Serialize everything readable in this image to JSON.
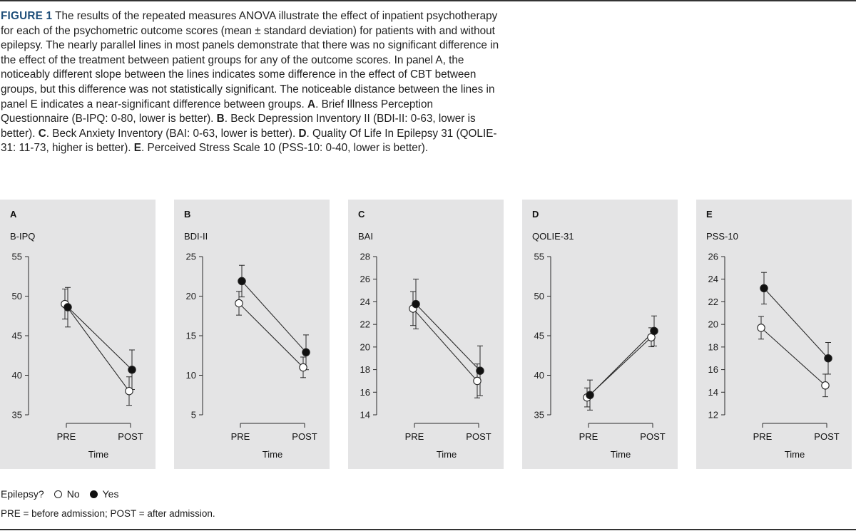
{
  "caption": {
    "figure_label": "FIGURE 1",
    "intro": "The results of the repeated measures ANOVA illustrate the effect of inpatient psychotherapy for each of the psychometric outcome scores (mean ± standard deviation) for patients with and without epilepsy. The nearly parallel lines in most panels demonstrate that there was no significant difference in the effect of the treatment between patient groups for any of the outcome scores. In panel A, the noticeably different slope between the lines indicates some difference in the effect of CBT between groups, but this difference was not statistically significant. The noticeable distance between the lines in panel E indicates a near-significant difference between groups.",
    "items": [
      {
        "letter": "A",
        "text": "Brief Illness Perception Questionnaire (B-IPQ: 0-80, lower is better)."
      },
      {
        "letter": "B",
        "text": "Beck Depression Inventory II (BDI-II: 0-63, lower is better)."
      },
      {
        "letter": "C",
        "text": "Beck Anxiety Inventory (BAI: 0-63, lower is better)."
      },
      {
        "letter": "D",
        "text": "Quality Of Life In Epilepsy 31 (QOLIE-31: 11-73, higher is better)."
      },
      {
        "letter": "E",
        "text": "Perceived Stress Scale 10 (PSS-10: 0-40, lower is better)."
      }
    ]
  },
  "legend": {
    "label": "Epilepsy?",
    "no": "No",
    "yes": "Yes",
    "colors": {
      "no_fill": "#ffffff",
      "yes_fill": "#111111",
      "stroke": "#222222"
    }
  },
  "footnote": "PRE = before admission; POST = after admission.",
  "chart_data": [
    {
      "type": "line",
      "panel": "A",
      "ylabel": "B-IPQ",
      "xlabel": "Time",
      "categories": [
        "PRE",
        "POST"
      ],
      "ylim": [
        35,
        55
      ],
      "yticks": [
        35,
        40,
        45,
        50,
        55
      ],
      "series": [
        {
          "name": "No",
          "values": [
            49.0,
            38.0
          ],
          "sd": [
            1.9,
            1.8
          ]
        },
        {
          "name": "Yes",
          "values": [
            48.6,
            40.7
          ],
          "sd": [
            2.5,
            2.5
          ]
        }
      ]
    },
    {
      "type": "line",
      "panel": "B",
      "ylabel": "BDI-II",
      "xlabel": "Time",
      "categories": [
        "PRE",
        "POST"
      ],
      "ylim": [
        5,
        25
      ],
      "yticks": [
        5,
        10,
        15,
        20,
        25
      ],
      "series": [
        {
          "name": "No",
          "values": [
            19.1,
            11.0
          ],
          "sd": [
            1.5,
            1.3
          ]
        },
        {
          "name": "Yes",
          "values": [
            21.9,
            12.9
          ],
          "sd": [
            2.0,
            2.2
          ]
        }
      ]
    },
    {
      "type": "line",
      "panel": "C",
      "ylabel": "BAI",
      "xlabel": "Time",
      "categories": [
        "PRE",
        "POST"
      ],
      "ylim": [
        14,
        28
      ],
      "yticks": [
        14,
        16,
        18,
        20,
        22,
        24,
        26,
        28
      ],
      "series": [
        {
          "name": "No",
          "values": [
            23.4,
            17.0
          ],
          "sd": [
            1.5,
            1.5
          ]
        },
        {
          "name": "Yes",
          "values": [
            23.8,
            17.9
          ],
          "sd": [
            2.2,
            2.2
          ]
        }
      ]
    },
    {
      "type": "line",
      "panel": "D",
      "ylabel": "QOLIE-31",
      "xlabel": "Time",
      "categories": [
        "PRE",
        "POST"
      ],
      "ylim": [
        35,
        55
      ],
      "yticks": [
        35,
        40,
        45,
        50,
        55
      ],
      "series": [
        {
          "name": "No",
          "values": [
            37.2,
            44.8
          ],
          "sd": [
            1.2,
            1.2
          ]
        },
        {
          "name": "Yes",
          "values": [
            37.5,
            45.6
          ],
          "sd": [
            1.9,
            1.9
          ]
        }
      ]
    },
    {
      "type": "line",
      "panel": "E",
      "ylabel": "PSS-10",
      "xlabel": "Time",
      "categories": [
        "PRE",
        "POST"
      ],
      "ylim": [
        12,
        26
      ],
      "yticks": [
        12,
        14,
        16,
        18,
        20,
        22,
        24,
        26
      ],
      "series": [
        {
          "name": "No",
          "values": [
            19.7,
            14.6
          ],
          "sd": [
            1.0,
            1.0
          ]
        },
        {
          "name": "Yes",
          "values": [
            23.2,
            17.0
          ],
          "sd": [
            1.4,
            1.4
          ]
        }
      ]
    }
  ]
}
